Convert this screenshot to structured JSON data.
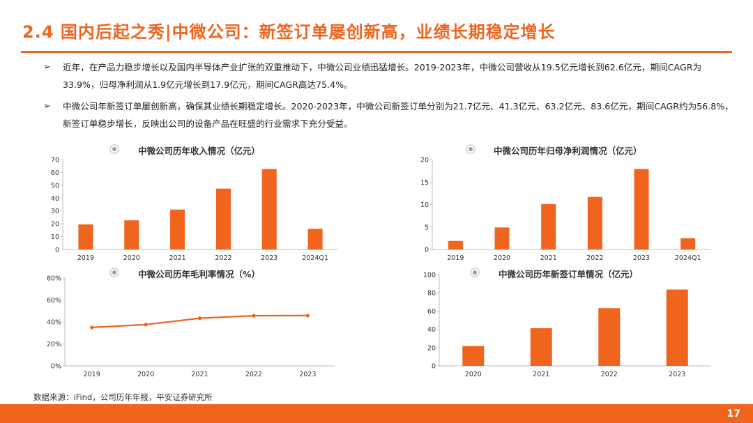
{
  "header": {
    "title": "2.4 国内后起之秀|中微公司：新签订单屡创新高，业绩长期稳定增长"
  },
  "bullets": [
    {
      "icon": "arrow-bullet-icon",
      "text": "近年，在产品力稳步增长以及国内半导体产业扩张的双重推动下，中微公司业绩迅猛增长。2019-2023年，中微公司营收从19.5亿元增长到62.6亿元，期间CAGR为33.9%，归母净利润从1.9亿元增长到17.9亿元，期间CAGR高达75.4%。"
    },
    {
      "icon": "arrow-bullet-icon",
      "text": "中微公司年新签订单屡创新高，确保其业绩长期稳定增长。2020-2023年，中微公司新签订单分别为21.7亿元、41.3亿元、63.2亿元、83.6亿元，期间CAGR约为56.8%，新签订单稳步增长，反映出公司的设备产品在旺盛的行业需求下充分受益。"
    }
  ],
  "colors": {
    "accent": "#f0641e",
    "bar": "#f0641e",
    "axis": "#bfbfbf",
    "text": "#222222"
  },
  "chart_data": [
    {
      "id": "revenue",
      "type": "bar",
      "title": "中微公司历年收入情况（亿元）",
      "categories": [
        "2019",
        "2020",
        "2021",
        "2022",
        "2023",
        "2024Q1"
      ],
      "values": [
        19.5,
        22.7,
        31.1,
        47.4,
        62.6,
        16.1
      ],
      "ylim": [
        0,
        70
      ],
      "yticks": [
        "0",
        "10",
        "20",
        "30",
        "40",
        "50",
        "60",
        "70"
      ],
      "grid": false
    },
    {
      "id": "net-profit",
      "type": "bar",
      "title": "中微公司历年归母净利润情况（亿元）",
      "categories": [
        "2019",
        "2020",
        "2021",
        "2022",
        "2023",
        "2024Q1"
      ],
      "values": [
        1.9,
        4.9,
        10.1,
        11.7,
        17.9,
        2.5
      ],
      "ylim": [
        0,
        20
      ],
      "yticks": [
        "0",
        "5",
        "10",
        "15",
        "20"
      ],
      "grid": false
    },
    {
      "id": "gross-margin",
      "type": "line",
      "title": "中微公司历年毛利率情况（%）",
      "categories": [
        "2019",
        "2020",
        "2021",
        "2022",
        "2023"
      ],
      "values": [
        35.0,
        37.6,
        43.4,
        45.7,
        45.8
      ],
      "ylim": [
        0,
        80
      ],
      "yticks": [
        "0%",
        "20%",
        "40%",
        "60%",
        "80%"
      ],
      "grid": false
    },
    {
      "id": "new-orders",
      "type": "bar",
      "title": "中微公司历年新签订单情况（亿元）",
      "categories": [
        "2020",
        "2021",
        "2022",
        "2023"
      ],
      "values": [
        21.7,
        41.3,
        63.2,
        83.6
      ],
      "ylim": [
        0,
        100
      ],
      "yticks": [
        "0",
        "20",
        "40",
        "60",
        "80",
        "100"
      ],
      "grid": false
    }
  ],
  "footer": {
    "source": "数据来源：iFind，公司历年年报，平安证券研究所",
    "page_number": "17"
  }
}
